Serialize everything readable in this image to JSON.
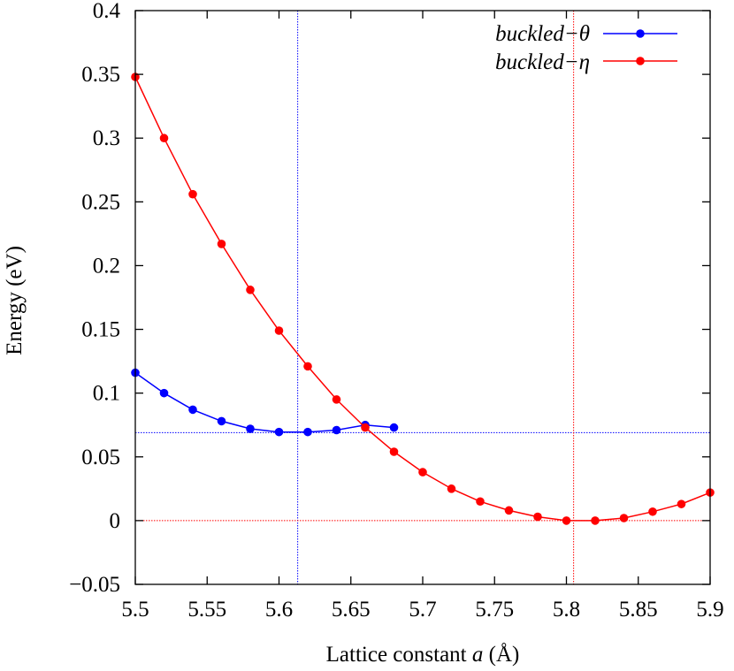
{
  "chart_data": {
    "type": "line",
    "xlabel": "Lattice constant a (Å)",
    "xlabel_parts": {
      "pre": "Lattice constant ",
      "italic": "a",
      "post": " (Å)"
    },
    "ylabel": "Energy (eV)",
    "xlim": [
      5.5,
      5.9
    ],
    "ylim": [
      -0.05,
      0.4
    ],
    "x_ticks": [
      5.5,
      5.55,
      5.6,
      5.65,
      5.7,
      5.75,
      5.8,
      5.85,
      5.9
    ],
    "x_tick_labels": [
      "5.5",
      "5.55",
      "5.6",
      "5.65",
      "5.7",
      "5.75",
      "5.8",
      "5.85",
      "5.9"
    ],
    "y_ticks": [
      -0.05,
      0,
      0.05,
      0.1,
      0.15,
      0.2,
      0.25,
      0.3,
      0.35,
      0.4
    ],
    "y_tick_labels": [
      "−0.05",
      "0",
      "0.05",
      "0.1",
      "0.15",
      "0.2",
      "0.25",
      "0.3",
      "0.35",
      "0.4"
    ],
    "grid": false,
    "legend_position": "top-right",
    "series": [
      {
        "name": "buckled−θ",
        "color": "#0000ff",
        "x": [
          5.5,
          5.52,
          5.54,
          5.56,
          5.58,
          5.6,
          5.62,
          5.64,
          5.66,
          5.68
        ],
        "y": [
          0.116,
          0.1,
          0.087,
          0.078,
          0.072,
          0.0695,
          0.0695,
          0.071,
          0.075,
          0.073
        ]
      },
      {
        "name": "buckled−η",
        "color": "#ff0000",
        "x": [
          5.5,
          5.52,
          5.54,
          5.56,
          5.58,
          5.6,
          5.62,
          5.64,
          5.66,
          5.68,
          5.7,
          5.72,
          5.74,
          5.76,
          5.78,
          5.8,
          5.82,
          5.84,
          5.86,
          5.88,
          5.9
        ],
        "y": [
          0.348,
          0.3,
          0.256,
          0.217,
          0.181,
          0.149,
          0.121,
          0.095,
          0.073,
          0.054,
          0.038,
          0.025,
          0.015,
          0.008,
          0.003,
          0.0,
          0.0,
          0.002,
          0.007,
          0.013,
          0.022
        ]
      }
    ],
    "reference_lines": [
      {
        "orientation": "vertical",
        "value": 5.613,
        "color": "#0000ff"
      },
      {
        "orientation": "horizontal",
        "value": 0.069,
        "color": "#0000ff"
      },
      {
        "orientation": "vertical",
        "value": 5.805,
        "color": "#ff0000"
      },
      {
        "orientation": "horizontal",
        "value": 0.0,
        "color": "#ff0000"
      }
    ]
  }
}
